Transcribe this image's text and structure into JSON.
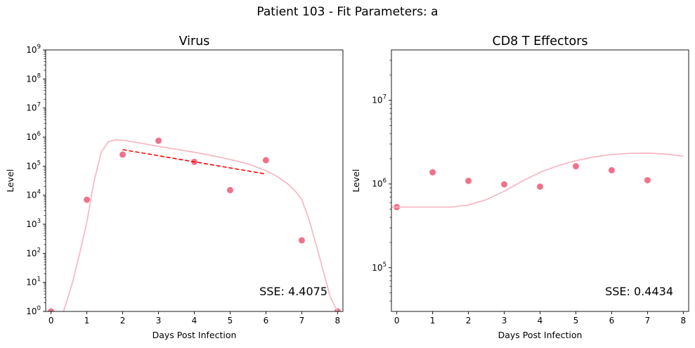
{
  "figure": {
    "suptitle": "Patient 103 - Fit Parameters: a"
  },
  "chart_data": [
    {
      "type": "scatter",
      "title": "Virus",
      "xlabel": "Days Post Infection",
      "ylabel": "Level",
      "xlim": [
        -0.15,
        8.15
      ],
      "ylim": [
        1,
        1000000000
      ],
      "yscale": "log",
      "x_ticks": [
        0,
        1,
        2,
        3,
        4,
        5,
        6,
        7,
        8
      ],
      "y_ticks": [
        {
          "exp": 0,
          "label_base": "10",
          "label_exp": "0"
        },
        {
          "exp": 1,
          "label_base": "10",
          "label_exp": "1"
        },
        {
          "exp": 2,
          "label_base": "10",
          "label_exp": "2"
        },
        {
          "exp": 3,
          "label_base": "10",
          "label_exp": "3"
        },
        {
          "exp": 4,
          "label_base": "10",
          "label_exp": "4"
        },
        {
          "exp": 5,
          "label_base": "10",
          "label_exp": "5"
        },
        {
          "exp": 6,
          "label_base": "10",
          "label_exp": "6"
        },
        {
          "exp": 7,
          "label_base": "10",
          "label_exp": "7"
        },
        {
          "exp": 8,
          "label_base": "10",
          "label_exp": "8"
        },
        {
          "exp": 9,
          "label_base": "10",
          "label_exp": "9"
        }
      ],
      "grid": false,
      "annotation": "SSE: 4.4075",
      "series": [
        {
          "kind": "points",
          "color": "#f0728a",
          "x": [
            0,
            1,
            2,
            3,
            4,
            5,
            6,
            7,
            8
          ],
          "y": [
            1,
            7000,
            250000,
            750000,
            140000,
            15000,
            160000,
            280,
            1
          ]
        },
        {
          "kind": "model-line",
          "color": "#f7b6c2",
          "x": [
            0.35,
            0.6,
            0.8,
            1.0,
            1.2,
            1.4,
            1.6,
            1.8,
            2.0,
            2.5,
            3.0,
            3.5,
            4.0,
            4.5,
            5.0,
            5.5,
            6.0,
            6.3,
            6.6,
            6.8,
            7.0,
            7.2,
            7.4,
            7.6,
            7.8,
            8.0
          ],
          "y": [
            1,
            10,
            100,
            1200,
            30000,
            300000,
            700000,
            800000,
            780000,
            620000,
            480000,
            380000,
            300000,
            230000,
            170000,
            120000,
            70000,
            45000,
            25000,
            15000,
            7000,
            1500,
            200,
            25,
            3,
            1
          ]
        },
        {
          "kind": "trend-line",
          "color": "#ff0000",
          "dash": "dashed",
          "x": [
            2,
            5.95
          ],
          "y": [
            370000,
            55000
          ]
        }
      ]
    },
    {
      "type": "scatter",
      "title": "CD8 T Effectors",
      "xlabel": "Days Post Infection",
      "ylabel": "Level",
      "xlim": [
        -0.15,
        8.15
      ],
      "ylim": [
        30000,
        40000000
      ],
      "yscale": "log",
      "x_ticks": [
        0,
        1,
        2,
        3,
        4,
        5,
        6,
        7,
        8
      ],
      "y_ticks": [
        {
          "exp": 5,
          "label_base": "10",
          "label_exp": "5"
        },
        {
          "exp": 6,
          "label_base": "10",
          "label_exp": "6"
        },
        {
          "exp": 7,
          "label_base": "10",
          "label_exp": "7"
        }
      ],
      "grid": false,
      "annotation": "SSE: 0.4434",
      "series": [
        {
          "kind": "points",
          "color": "#f0728a",
          "x": [
            0,
            1,
            2,
            3,
            4,
            5,
            6,
            7
          ],
          "y": [
            530000,
            1380000,
            1090000,
            990000,
            930000,
            1630000,
            1460000,
            1110000
          ]
        },
        {
          "kind": "model-line",
          "color": "#f7b6c2",
          "x": [
            -0.15,
            0.5,
            1.0,
            1.5,
            2.0,
            2.5,
            3.0,
            3.5,
            4.0,
            4.5,
            5.0,
            5.5,
            6.0,
            6.5,
            7.0,
            7.5,
            8.0
          ],
          "y": [
            530000,
            530000,
            530000,
            530000,
            560000,
            650000,
            820000,
            1080000,
            1380000,
            1650000,
            1900000,
            2100000,
            2250000,
            2320000,
            2340000,
            2280000,
            2150000
          ]
        }
      ]
    }
  ]
}
